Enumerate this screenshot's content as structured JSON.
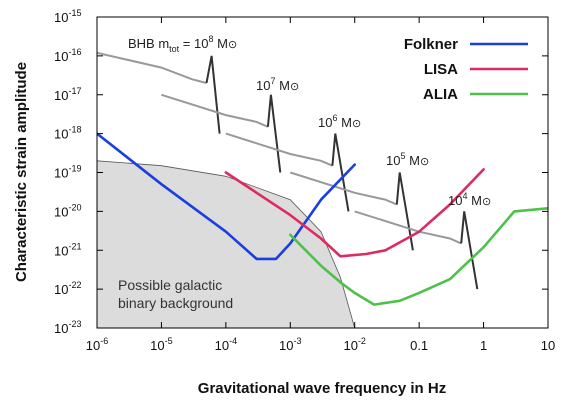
{
  "chart_data": {
    "type": "line",
    "xlabel": "Gravitational wave frequency in Hz",
    "ylabel": "Characteristic strain amplitude",
    "x_scale": "log",
    "y_scale": "log",
    "xlim": [
      1e-06,
      10
    ],
    "ylim": [
      1e-23,
      1e-15
    ],
    "x_ticks": [
      {
        "value": 1e-06,
        "base": "10",
        "exp": "-6"
      },
      {
        "value": 1e-05,
        "base": "10",
        "exp": "-5"
      },
      {
        "value": 0.0001,
        "base": "10",
        "exp": "-4"
      },
      {
        "value": 0.001,
        "base": "10",
        "exp": "-3"
      },
      {
        "value": 0.01,
        "base": "10",
        "exp": "-2"
      },
      {
        "value": 0.1,
        "base": "0.1",
        "exp": ""
      },
      {
        "value": 1,
        "base": "1",
        "exp": ""
      },
      {
        "value": 10,
        "base": "10",
        "exp": ""
      }
    ],
    "y_ticks": [
      {
        "value": 1e-15,
        "base": "10",
        "exp": "-15"
      },
      {
        "value": 1e-16,
        "base": "10",
        "exp": "-16"
      },
      {
        "value": 1e-17,
        "base": "10",
        "exp": "-17"
      },
      {
        "value": 1e-18,
        "base": "10",
        "exp": "-18"
      },
      {
        "value": 1e-19,
        "base": "10",
        "exp": "-19"
      },
      {
        "value": 1e-20,
        "base": "10",
        "exp": "-20"
      },
      {
        "value": 1e-21,
        "base": "10",
        "exp": "-21"
      },
      {
        "value": 1e-22,
        "base": "10",
        "exp": "-22"
      },
      {
        "value": 1e-23,
        "base": "10",
        "exp": "-23"
      }
    ],
    "legend_position": "top-right",
    "series": [
      {
        "name": "Folkner",
        "color": "#1a3fe0",
        "points": [
          [
            1e-06,
            1e-18
          ],
          [
            1e-05,
            5e-20
          ],
          [
            0.0001,
            3e-21
          ],
          [
            0.0003,
            6e-22
          ],
          [
            0.0006,
            6e-22
          ],
          [
            0.001,
            1.5e-21
          ],
          [
            0.003,
            2e-20
          ],
          [
            0.01,
            1.6e-19
          ]
        ]
      },
      {
        "name": "LISA",
        "color": "#dd2a60",
        "points": [
          [
            0.0001,
            1e-19
          ],
          [
            0.0003,
            3e-20
          ],
          [
            0.001,
            8e-21
          ],
          [
            0.003,
            2e-21
          ],
          [
            0.006,
            7e-22
          ],
          [
            0.015,
            8e-22
          ],
          [
            0.03,
            1e-21
          ],
          [
            0.1,
            3e-21
          ],
          [
            0.3,
            1.5e-20
          ],
          [
            1,
            1.2e-19
          ]
        ]
      },
      {
        "name": "ALIA",
        "color": "#4fc04a",
        "points": [
          [
            0.001,
            2.5e-21
          ],
          [
            0.003,
            4e-22
          ],
          [
            0.006,
            1.5e-22
          ],
          [
            0.01,
            8e-23
          ],
          [
            0.02,
            4e-23
          ],
          [
            0.05,
            5e-23
          ],
          [
            0.1,
            8e-23
          ],
          [
            0.3,
            1.8e-22
          ],
          [
            1,
            1.2e-21
          ],
          [
            3,
            1e-20
          ],
          [
            10,
            1.2e-20
          ]
        ]
      }
    ],
    "bhb_tracks": [
      {
        "label_base": "BHB m",
        "label_sub": "tot",
        "label_eq": " = 10",
        "label_exp": "8",
        "label_unit": " M",
        "points": [
          [
            1e-06,
            1.2e-16
          ],
          [
            1e-05,
            5e-17
          ],
          [
            3e-05,
            2.5e-17
          ],
          [
            5e-05,
            2e-17
          ],
          [
            6e-05,
            1e-16
          ],
          [
            8e-05,
            1e-18
          ]
        ]
      },
      {
        "label_base": "10",
        "label_exp": "7",
        "label_unit": " M",
        "points": [
          [
            1e-05,
            1e-17
          ],
          [
            0.0001,
            3e-18
          ],
          [
            0.0003,
            2e-18
          ],
          [
            0.00045,
            1.5e-18
          ],
          [
            0.0005,
            1e-17
          ],
          [
            0.0007,
            1e-19
          ]
        ]
      },
      {
        "label_base": "10",
        "label_exp": "6",
        "label_unit": " M",
        "points": [
          [
            0.0001,
            1e-18
          ],
          [
            0.001,
            3e-19
          ],
          [
            0.003,
            2e-19
          ],
          [
            0.0045,
            1.5e-19
          ],
          [
            0.005,
            1e-18
          ],
          [
            0.008,
            1e-20
          ]
        ]
      },
      {
        "label_base": "10",
        "label_exp": "5",
        "label_unit": " M",
        "points": [
          [
            0.001,
            1e-19
          ],
          [
            0.01,
            3e-20
          ],
          [
            0.03,
            2e-20
          ],
          [
            0.045,
            1.5e-20
          ],
          [
            0.05,
            1e-19
          ],
          [
            0.08,
            1e-21
          ]
        ]
      },
      {
        "label_base": "10",
        "label_exp": "4",
        "label_unit": " M",
        "points": [
          [
            0.01,
            1e-20
          ],
          [
            0.1,
            3e-21
          ],
          [
            0.3,
            2e-21
          ],
          [
            0.45,
            1.5e-21
          ],
          [
            0.5,
            1e-20
          ],
          [
            0.8,
            1e-22
          ]
        ]
      }
    ],
    "background": {
      "label_line1": "Possible galactic",
      "label_line2": "binary background",
      "points": [
        [
          1e-06,
          2e-19
        ],
        [
          1e-05,
          1.5e-19
        ],
        [
          0.0001,
          8e-20
        ],
        [
          0.001,
          2e-20
        ],
        [
          0.003,
          3e-21
        ],
        [
          0.006,
          2e-22
        ],
        [
          0.01,
          1e-23
        ]
      ]
    },
    "sun_symbol": "⊙"
  }
}
